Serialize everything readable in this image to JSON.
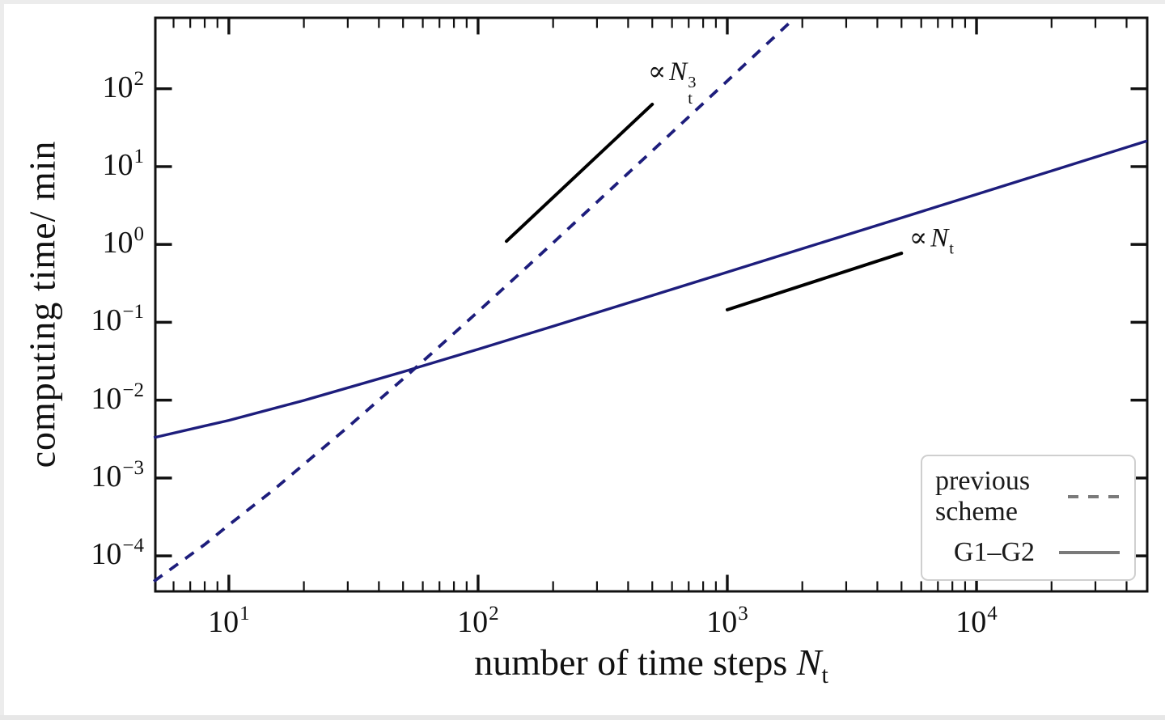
{
  "figure": {
    "background": "#ffffff",
    "frame_color": "#111111",
    "curve_color": "#1d1d7c",
    "guide_color": "#000000",
    "legend_sample_color": "#7a7a7a",
    "legend_border_color": "#cfcfcf"
  },
  "chart_data": {
    "type": "line",
    "x_scale": "log",
    "y_scale": "log",
    "title": "",
    "xlabel": {
      "prefix": "number of time steps ",
      "symbol": "N",
      "subscript": "t"
    },
    "ylabel": "computing time/ min",
    "xlim": [
      5.07,
      48400
    ],
    "ylim": [
      3.5e-05,
      814
    ],
    "grid": false,
    "x_ticks": [
      {
        "v": 10,
        "base": "10",
        "exp": "1"
      },
      {
        "v": 100,
        "base": "10",
        "exp": "2"
      },
      {
        "v": 1000,
        "base": "10",
        "exp": "3"
      },
      {
        "v": 10000,
        "base": "10",
        "exp": "4"
      }
    ],
    "y_ticks": [
      {
        "v": 100,
        "base": "10",
        "exp": "2"
      },
      {
        "v": 10,
        "base": "10",
        "exp": "1"
      },
      {
        "v": 1,
        "base": "10",
        "exp": "0"
      },
      {
        "v": 0.1,
        "base": "10",
        "exp": "−1"
      },
      {
        "v": 0.01,
        "base": "10",
        "exp": "−2"
      },
      {
        "v": 0.001,
        "base": "10",
        "exp": "−3"
      },
      {
        "v": 0.0001,
        "base": "10",
        "exp": "−4"
      }
    ],
    "series": [
      {
        "name": "previous scheme",
        "line_style": "dashed",
        "color": "#1d1d7c",
        "scaling": "N_t^3",
        "points": [
          [
            5,
            4.7e-05
          ],
          [
            8,
            0.00014
          ],
          [
            10,
            0.00025
          ],
          [
            15,
            0.00069
          ],
          [
            20,
            0.0015
          ],
          [
            30,
            0.0045
          ],
          [
            50,
            0.0187
          ],
          [
            70,
            0.049
          ],
          [
            100,
            0.137
          ],
          [
            150,
            0.45
          ],
          [
            200,
            1.05
          ],
          [
            300,
            3.5
          ],
          [
            500,
            15.9
          ],
          [
            700,
            43.4
          ],
          [
            1000,
            126
          ],
          [
            1300,
            276
          ],
          [
            1600,
            513
          ],
          [
            1860,
            806
          ]
        ]
      },
      {
        "name": "G1–G2",
        "line_style": "solid",
        "color": "#1d1d7c",
        "scaling": "N_t",
        "points": [
          [
            5,
            0.0033
          ],
          [
            10,
            0.0055
          ],
          [
            20,
            0.0099
          ],
          [
            50,
            0.0231
          ],
          [
            100,
            0.0451
          ],
          [
            200,
            0.0891
          ],
          [
            500,
            0.221
          ],
          [
            1000,
            0.441
          ],
          [
            2000,
            0.881
          ],
          [
            5000,
            2.2
          ],
          [
            10000,
            4.4
          ],
          [
            20000,
            8.8
          ],
          [
            48400,
            21.4
          ]
        ]
      }
    ],
    "guides": [
      {
        "label": {
          "prefix": "∝",
          "symbol": "N",
          "subscript": "t",
          "superscript": "3"
        },
        "x1": 130,
        "y1": 1.1,
        "x2": 500,
        "y2": 63,
        "label_x": 600,
        "label_y": 126
      },
      {
        "label": {
          "prefix": "∝",
          "symbol": "N",
          "subscript": "t",
          "superscript": ""
        },
        "x1": 1000,
        "y1": 0.145,
        "x2": 5000,
        "y2": 0.77,
        "label_x": 6600,
        "label_y": 1.15
      }
    ],
    "legend": {
      "position": "lower right",
      "entries": [
        {
          "label_lines": [
            "previous",
            "scheme"
          ],
          "style": "dashed"
        },
        {
          "label_lines": [
            "G1–G2"
          ],
          "style": "solid"
        }
      ]
    }
  }
}
